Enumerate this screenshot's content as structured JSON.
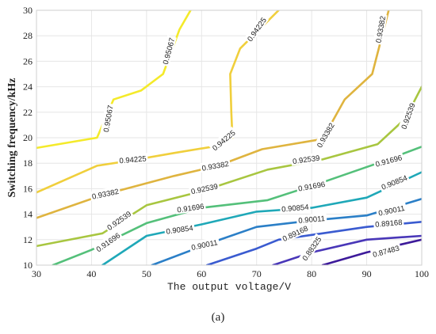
{
  "chart_data": {
    "type": "contour",
    "xlabel": "The output voltage/V",
    "ylabel": "Switching frequency/kHz",
    "xlim": [
      30,
      100
    ],
    "ylim": [
      10,
      30
    ],
    "xticks": [
      30,
      40,
      50,
      60,
      70,
      80,
      90,
      100
    ],
    "yticks": [
      10,
      12,
      14,
      16,
      18,
      20,
      22,
      24,
      26,
      28,
      30
    ],
    "grid": true,
    "levels": [
      {
        "level": "0.95067",
        "color": "#f4ea2a",
        "points": [
          [
            30,
            19.2
          ],
          [
            41,
            20
          ],
          [
            44,
            23
          ],
          [
            49,
            23.7
          ],
          [
            53,
            25
          ],
          [
            56,
            28.5
          ],
          [
            58,
            30
          ]
        ],
        "labels": [
          {
            "x": 43,
            "y": 21.5,
            "rot": -80
          },
          {
            "x": 54,
            "y": 26.8,
            "rot": -75
          }
        ]
      },
      {
        "level": "0.94225",
        "color": "#f0cf3c",
        "points": [
          [
            30,
            15.7
          ],
          [
            41,
            17.8
          ],
          [
            47,
            18.2
          ],
          [
            55,
            18.8
          ],
          [
            62,
            19.3
          ],
          [
            65.6,
            20
          ],
          [
            65.4,
            22
          ],
          [
            65.2,
            25
          ],
          [
            67,
            27
          ],
          [
            74,
            30
          ]
        ],
        "labels": [
          {
            "x": 47.5,
            "y": 18.3,
            "rot": -5
          },
          {
            "x": 64,
            "y": 19.8,
            "rot": -40
          },
          {
            "x": 70,
            "y": 28.5,
            "rot": -55
          }
        ]
      },
      {
        "level": "0.93382",
        "color": "#dfb43f",
        "points": [
          [
            30,
            13.7
          ],
          [
            42,
            15.5
          ],
          [
            55,
            17
          ],
          [
            63,
            17.8
          ],
          [
            71,
            19.1
          ],
          [
            82,
            19.9
          ],
          [
            86,
            23
          ],
          [
            91,
            25
          ],
          [
            94,
            30
          ]
        ],
        "labels": [
          {
            "x": 42.5,
            "y": 15.6,
            "rot": -12
          },
          {
            "x": 62.5,
            "y": 17.8,
            "rot": -10
          },
          {
            "x": 82.5,
            "y": 20.2,
            "rot": -60
          },
          {
            "x": 92.5,
            "y": 28.5,
            "rot": -80
          }
        ]
      },
      {
        "level": "0.92539",
        "color": "#a8c640",
        "points": [
          [
            30,
            11.5
          ],
          [
            42,
            12.5
          ],
          [
            50,
            14.7
          ],
          [
            60,
            15.8
          ],
          [
            72,
            17.5
          ],
          [
            82,
            18.3
          ],
          [
            92,
            19.5
          ],
          [
            97,
            21.5
          ],
          [
            100,
            24
          ]
        ],
        "labels": [
          {
            "x": 45,
            "y": 13.5,
            "rot": -35
          },
          {
            "x": 60.5,
            "y": 16,
            "rot": -12
          },
          {
            "x": 79,
            "y": 18.3,
            "rot": -8
          },
          {
            "x": 97.5,
            "y": 21.7,
            "rot": -70
          }
        ]
      },
      {
        "level": "0.91696",
        "color": "#54c07a",
        "points": [
          [
            33,
            10
          ],
          [
            40,
            11.2
          ],
          [
            50,
            13.3
          ],
          [
            60,
            14.5
          ],
          [
            72,
            15.1
          ],
          [
            82,
            16.5
          ],
          [
            92,
            18
          ],
          [
            100,
            19.3
          ]
        ],
        "labels": [
          {
            "x": 43,
            "y": 11.8,
            "rot": -35
          },
          {
            "x": 58,
            "y": 14.5,
            "rot": -8
          },
          {
            "x": 80,
            "y": 16.2,
            "rot": -10
          },
          {
            "x": 94,
            "y": 18.2,
            "rot": -15
          }
        ]
      },
      {
        "level": "0.90854",
        "color": "#1fa8b8",
        "points": [
          [
            42,
            10
          ],
          [
            50,
            12.3
          ],
          [
            60,
            13.2
          ],
          [
            70,
            14.2
          ],
          [
            80,
            14.5
          ],
          [
            90,
            15.3
          ],
          [
            100,
            17.3
          ]
        ],
        "labels": [
          {
            "x": 56,
            "y": 12.8,
            "rot": -8
          },
          {
            "x": 77,
            "y": 14.5,
            "rot": -5
          },
          {
            "x": 95,
            "y": 16.5,
            "rot": -22
          }
        ]
      },
      {
        "level": "0.90011",
        "color": "#2b7fc7",
        "points": [
          [
            51,
            10
          ],
          [
            62,
            11.8
          ],
          [
            70,
            13
          ],
          [
            80,
            13.5
          ],
          [
            90,
            13.9
          ],
          [
            100,
            15.2
          ]
        ],
        "labels": [
          {
            "x": 60.5,
            "y": 11.6,
            "rot": -12
          },
          {
            "x": 80,
            "y": 13.6,
            "rot": -5
          },
          {
            "x": 94.5,
            "y": 14.3,
            "rot": -12
          }
        ]
      },
      {
        "level": "0.89168",
        "color": "#3a5bd0",
        "points": [
          [
            61,
            10
          ],
          [
            70,
            11.3
          ],
          [
            74,
            12
          ],
          [
            82,
            12.5
          ],
          [
            90,
            13
          ],
          [
            100,
            13.4
          ]
        ],
        "labels": [
          {
            "x": 77,
            "y": 12.5,
            "rot": -25
          },
          {
            "x": 94,
            "y": 13.3,
            "rot": -5
          }
        ]
      },
      {
        "level": "0.88325",
        "color": "#4937b8",
        "points": [
          [
            73,
            10
          ],
          [
            80,
            11
          ],
          [
            90,
            12
          ],
          [
            100,
            12.3
          ]
        ],
        "labels": [
          {
            "x": 80,
            "y": 11.3,
            "rot": -55
          }
        ]
      },
      {
        "level": "0.87483",
        "color": "#3d1a9a",
        "points": [
          [
            82,
            10
          ],
          [
            90,
            11
          ],
          [
            100,
            12
          ]
        ],
        "labels": [
          {
            "x": 93.5,
            "y": 11.1,
            "rot": -15
          }
        ]
      }
    ]
  },
  "caption": "(a)"
}
